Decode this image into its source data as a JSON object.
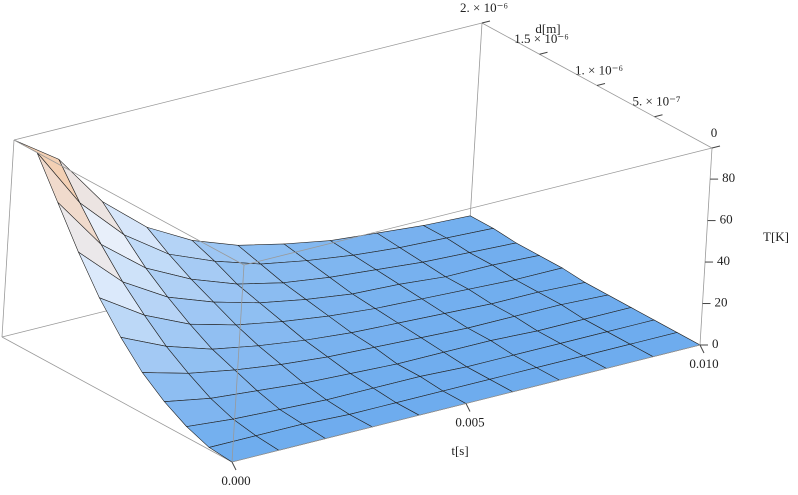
{
  "chart_data": {
    "type": "surface",
    "xlabel": "t[s]",
    "ylabel": "d[m]",
    "zlabel": "T[K]",
    "x": [
      0,
      0.001,
      0.002,
      0.003,
      0.004,
      0.005,
      0.006,
      0.007,
      0.008,
      0.009,
      0.01
    ],
    "y": [
      0,
      2e-07,
      4e-07,
      6e-07,
      8e-07,
      1e-06,
      1.2e-06,
      1.4e-06,
      1.6e-06,
      1.8e-06,
      2e-06
    ],
    "z": [
      [
        0,
        0,
        0,
        0,
        0,
        0,
        0,
        0,
        0,
        0,
        0
      ],
      [
        1,
        1,
        1,
        0,
        0,
        0,
        0,
        0,
        0,
        0,
        0
      ],
      [
        5,
        3,
        2,
        1,
        1,
        1,
        0,
        0,
        0,
        0,
        0
      ],
      [
        11,
        7,
        5,
        3,
        2,
        1,
        1,
        1,
        0,
        0,
        0
      ],
      [
        19,
        13,
        9,
        6,
        4,
        3,
        2,
        1,
        1,
        1,
        0
      ],
      [
        30,
        20,
        13,
        9,
        6,
        4,
        3,
        2,
        1,
        1,
        0
      ],
      [
        43,
        29,
        19,
        13,
        9,
        6,
        4,
        3,
        2,
        1,
        1
      ],
      [
        59,
        39,
        26,
        18,
        12,
        8,
        5,
        4,
        2,
        2,
        1
      ],
      [
        77,
        51,
        34,
        23,
        15,
        10,
        7,
        5,
        3,
        2,
        1
      ],
      [
        95,
        65,
        44,
        29,
        20,
        13,
        9,
        6,
        4,
        3,
        2
      ],
      [
        95,
        80,
        54,
        36,
        24,
        16,
        11,
        7,
        5,
        3,
        2
      ]
    ],
    "xlim": [
      0,
      0.01
    ],
    "ylim": [
      0,
      2e-06
    ],
    "zlim": [
      0,
      95
    ],
    "xticks": [
      {
        "value": 0,
        "label": "0.000"
      },
      {
        "value": 0.005,
        "label": "0.005"
      },
      {
        "value": 0.01,
        "label": "0.010"
      }
    ],
    "yticks": [
      0,
      {
        "value": 5e-07,
        "label": "5. × 10⁻⁷"
      },
      {
        "value": 1e-06,
        "label": "1. × 10⁻⁶"
      },
      {
        "value": 1.5e-06,
        "label": "1.5 × 10⁻⁶"
      },
      {
        "value": 2e-06,
        "label": "2. × 10⁻⁶"
      }
    ],
    "zticks": [
      0,
      20,
      40,
      60,
      80
    ]
  }
}
